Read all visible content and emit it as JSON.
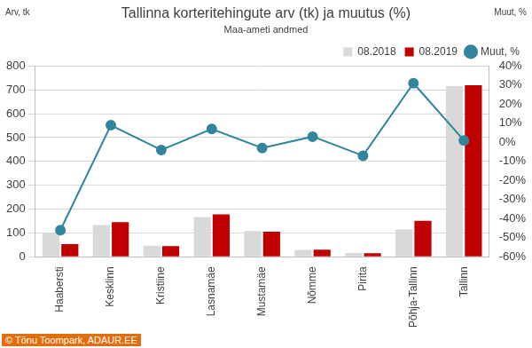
{
  "chart_data": {
    "type": "bar",
    "title": "Tallinna korteritehingute arv (tk) ja muutus (%)",
    "subtitle": "Maa-ameti andmed",
    "y_label": "Arv, tk",
    "y2_label": "Muut, %",
    "annotations": [
      "© Tõnu Toompark, ADAUR.EE"
    ],
    "categories": [
      "Haabersti",
      "Kesklinn",
      "Kristiine",
      "Lasnamäe",
      "Mustamäe",
      "Nõmme",
      "Pirita",
      "Põhja-Tallinn",
      "Tallinn"
    ],
    "series": [
      {
        "name": "08.2018",
        "color": "#d9d9d9",
        "values": [
          98,
          133,
          47,
          167,
          108,
          29,
          16,
          115,
          716
        ]
      },
      {
        "name": "08.2019",
        "color": "#c00000",
        "values": [
          53,
          145,
          45,
          178,
          105,
          30,
          15,
          151,
          720
        ]
      },
      {
        "name": "Muut, %",
        "type": "line",
        "axis": "y2",
        "color": "#31859c",
        "marker": "circle",
        "values": [
          -46,
          9,
          -4,
          7,
          -3,
          3,
          -7,
          31,
          1
        ]
      }
    ],
    "ylim": [
      0,
      800
    ],
    "yticks": [
      0,
      100,
      200,
      300,
      400,
      500,
      600,
      700,
      800
    ],
    "y2lim": [
      -60,
      40
    ],
    "y2ticks": [
      {
        "value": -60,
        "label": "-60%"
      },
      {
        "value": -50,
        "label": "-50%"
      },
      {
        "value": -40,
        "label": "-40%"
      },
      {
        "value": -30,
        "label": "-30%"
      },
      {
        "value": -20,
        "label": "-20%"
      },
      {
        "value": -10,
        "label": "-10%"
      },
      {
        "value": 0,
        "label": "0%"
      },
      {
        "value": 10,
        "label": "10%"
      },
      {
        "value": 20,
        "label": "20%"
      },
      {
        "value": 30,
        "label": "30%"
      },
      {
        "value": 40,
        "label": "40%"
      }
    ],
    "grid": true,
    "legend": "top-right"
  }
}
